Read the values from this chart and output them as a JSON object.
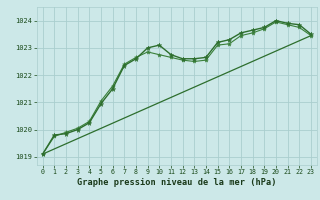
{
  "title": "Graphe pression niveau de la mer (hPa)",
  "background_color": "#cce8e8",
  "grid_color": "#aacece",
  "line_color_dark": "#2d6e2d",
  "line_color_mid": "#3a803a",
  "xlim": [
    -0.5,
    23.5
  ],
  "ylim": [
    1018.7,
    1024.5
  ],
  "yticks": [
    1019,
    1020,
    1021,
    1022,
    1023,
    1024
  ],
  "xticks": [
    0,
    1,
    2,
    3,
    4,
    5,
    6,
    7,
    8,
    9,
    10,
    11,
    12,
    13,
    14,
    15,
    16,
    17,
    18,
    19,
    20,
    21,
    22,
    23
  ],
  "line1_x": [
    0,
    1,
    2,
    3,
    4,
    5,
    6,
    7,
    8,
    9,
    10,
    11,
    12,
    13,
    14,
    15,
    16,
    17,
    18,
    19,
    20,
    21,
    22,
    23
  ],
  "line1_y": [
    1019.1,
    1019.8,
    1019.85,
    1020.0,
    1020.25,
    1020.95,
    1021.5,
    1022.35,
    1022.6,
    1023.0,
    1023.1,
    1022.75,
    1022.6,
    1022.6,
    1022.65,
    1023.2,
    1023.3,
    1023.55,
    1023.65,
    1023.75,
    1024.0,
    1023.9,
    1023.85,
    1023.5
  ],
  "line2_x": [
    0,
    1,
    2,
    3,
    4,
    5,
    6,
    7,
    8,
    9,
    10,
    11,
    12,
    13,
    14,
    15,
    16,
    17,
    18,
    19,
    20,
    21,
    22,
    23
  ],
  "line2_y": [
    1019.1,
    1019.75,
    1019.9,
    1020.05,
    1020.3,
    1021.05,
    1021.6,
    1022.4,
    1022.65,
    1022.85,
    1022.75,
    1022.65,
    1022.55,
    1022.5,
    1022.55,
    1023.1,
    1023.15,
    1023.45,
    1023.55,
    1023.7,
    1023.95,
    1023.85,
    1023.75,
    1023.45
  ],
  "line3_x": [
    0,
    23
  ],
  "line3_y": [
    1019.1,
    1023.45
  ]
}
